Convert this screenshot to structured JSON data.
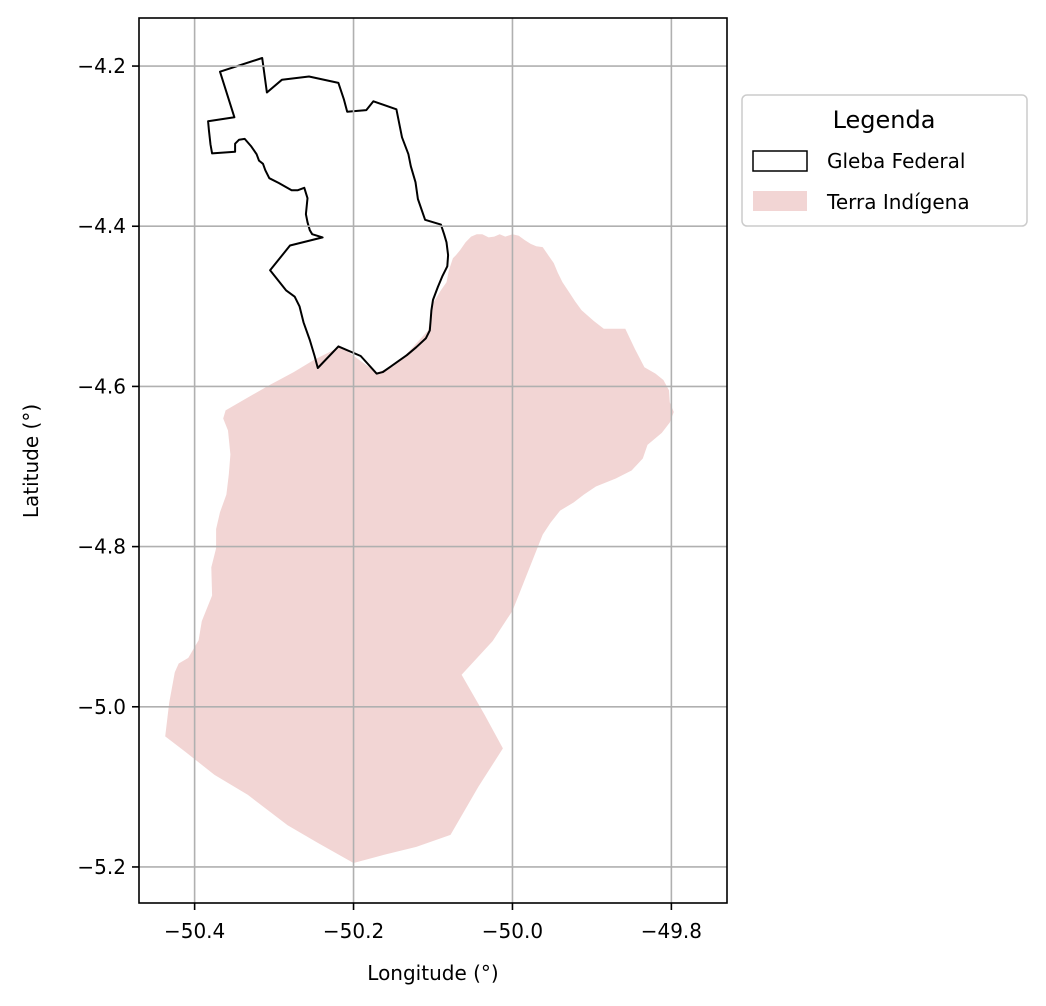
{
  "chart_data": {
    "type": "map",
    "xlabel": "Longitude (°)",
    "ylabel": "Latitude (°)",
    "xlim": [
      -50.47,
      -49.73
    ],
    "ylim": [
      -5.245,
      -4.14
    ],
    "x_ticks": [
      -50.4,
      -50.2,
      -50.0,
      -49.8
    ],
    "x_tick_labels": [
      "−50.4",
      "−50.2",
      "−50.0",
      "−49.8"
    ],
    "y_ticks": [
      -4.2,
      -4.4,
      -4.6,
      -4.8,
      -5.0,
      -5.2
    ],
    "y_tick_labels": [
      "−4.2",
      "−4.4",
      "−4.6",
      "−4.8",
      "−5.0",
      "−5.2"
    ],
    "grid": true,
    "legend": {
      "title": "Legenda",
      "placement": "outside upper right",
      "entries": [
        {
          "label": "Gleba Federal",
          "style": "outline",
          "color": "#000000"
        },
        {
          "label": "Terra Indígena",
          "style": "fill",
          "color": "#f2d5d4"
        }
      ]
    },
    "layers": [
      {
        "name": "Terra Indígena",
        "style": "fill",
        "color": "#f2d5d4",
        "coordinates": [
          [
            -50.216,
            -4.55
          ],
          [
            -50.19,
            -4.569
          ],
          [
            -50.171,
            -4.583
          ],
          [
            -50.15,
            -4.575
          ],
          [
            -50.13,
            -4.556
          ],
          [
            -50.106,
            -4.53
          ],
          [
            -50.1,
            -4.496
          ],
          [
            -50.09,
            -4.48
          ],
          [
            -50.083,
            -4.47
          ],
          [
            -50.08,
            -4.455
          ],
          [
            -50.075,
            -4.44
          ],
          [
            -50.071,
            -4.436
          ],
          [
            -50.066,
            -4.43
          ],
          [
            -50.059,
            -4.42
          ],
          [
            -50.052,
            -4.413
          ],
          [
            -50.045,
            -4.41
          ],
          [
            -50.038,
            -4.41
          ],
          [
            -50.03,
            -4.414
          ],
          [
            -50.023,
            -4.413
          ],
          [
            -50.016,
            -4.41
          ],
          [
            -50.009,
            -4.413
          ],
          [
            -50.0,
            -4.41
          ],
          [
            -49.992,
            -4.412
          ],
          [
            -49.985,
            -4.417
          ],
          [
            -49.977,
            -4.422
          ],
          [
            -49.97,
            -4.425
          ],
          [
            -49.962,
            -4.426
          ],
          [
            -49.955,
            -4.436
          ],
          [
            -49.948,
            -4.446
          ],
          [
            -49.943,
            -4.458
          ],
          [
            -49.937,
            -4.47
          ],
          [
            -49.929,
            -4.482
          ],
          [
            -49.921,
            -4.494
          ],
          [
            -49.913,
            -4.505
          ],
          [
            -49.898,
            -4.518
          ],
          [
            -49.885,
            -4.528
          ],
          [
            -49.858,
            -4.528
          ],
          [
            -49.846,
            -4.553
          ],
          [
            -49.834,
            -4.576
          ],
          [
            -49.82,
            -4.584
          ],
          [
            -49.81,
            -4.592
          ],
          [
            -49.803,
            -4.605
          ],
          [
            -49.802,
            -4.62
          ],
          [
            -49.797,
            -4.632
          ],
          [
            -49.802,
            -4.645
          ],
          [
            -49.812,
            -4.658
          ],
          [
            -49.83,
            -4.673
          ],
          [
            -49.836,
            -4.69
          ],
          [
            -49.85,
            -4.705
          ],
          [
            -49.87,
            -4.715
          ],
          [
            -49.895,
            -4.725
          ],
          [
            -49.91,
            -4.735
          ],
          [
            -49.923,
            -4.745
          ],
          [
            -49.94,
            -4.755
          ],
          [
            -49.952,
            -4.77
          ],
          [
            -49.962,
            -4.785
          ],
          [
            -49.98,
            -4.83
          ],
          [
            -50.0,
            -4.88
          ],
          [
            -50.025,
            -4.918
          ],
          [
            -50.064,
            -4.96
          ],
          [
            -50.035,
            -5.01
          ],
          [
            -50.012,
            -5.052
          ],
          [
            -50.043,
            -5.1
          ],
          [
            -50.078,
            -5.16
          ],
          [
            -50.121,
            -5.175
          ],
          [
            -50.162,
            -5.185
          ],
          [
            -50.2,
            -5.195
          ],
          [
            -50.245,
            -5.17
          ],
          [
            -50.283,
            -5.148
          ],
          [
            -50.333,
            -5.11
          ],
          [
            -50.375,
            -5.085
          ],
          [
            -50.412,
            -5.056
          ],
          [
            -50.437,
            -5.037
          ],
          [
            -50.432,
            -4.995
          ],
          [
            -50.425,
            -4.957
          ],
          [
            -50.42,
            -4.946
          ],
          [
            -50.408,
            -4.939
          ],
          [
            -50.395,
            -4.917
          ],
          [
            -50.391,
            -4.893
          ],
          [
            -50.378,
            -4.861
          ],
          [
            -50.379,
            -4.826
          ],
          [
            -50.373,
            -4.802
          ],
          [
            -50.373,
            -4.778
          ],
          [
            -50.368,
            -4.757
          ],
          [
            -50.36,
            -4.735
          ],
          [
            -50.357,
            -4.71
          ],
          [
            -50.355,
            -4.685
          ],
          [
            -50.358,
            -4.655
          ],
          [
            -50.364,
            -4.64
          ],
          [
            -50.361,
            -4.63
          ],
          [
            -50.335,
            -4.615
          ],
          [
            -50.305,
            -4.598
          ],
          [
            -50.275,
            -4.582
          ],
          [
            -50.25,
            -4.567
          ]
        ]
      },
      {
        "name": "Gleba Federal",
        "style": "outline",
        "color": "#000000",
        "coordinates": [
          [
            -50.315,
            -4.19
          ],
          [
            -50.368,
            -4.207
          ],
          [
            -50.35,
            -4.264
          ],
          [
            -50.383,
            -4.269
          ],
          [
            -50.382,
            -4.28
          ],
          [
            -50.38,
            -4.298
          ],
          [
            -50.378,
            -4.309
          ],
          [
            -50.349,
            -4.307
          ],
          [
            -50.349,
            -4.297
          ],
          [
            -50.344,
            -4.292
          ],
          [
            -50.337,
            -4.291
          ],
          [
            -50.329,
            -4.3
          ],
          [
            -50.322,
            -4.31
          ],
          [
            -50.319,
            -4.318
          ],
          [
            -50.314,
            -4.322
          ],
          [
            -50.311,
            -4.33
          ],
          [
            -50.306,
            -4.34
          ],
          [
            -50.294,
            -4.346
          ],
          [
            -50.278,
            -4.355
          ],
          [
            -50.27,
            -4.355
          ],
          [
            -50.262,
            -4.352
          ],
          [
            -50.258,
            -4.365
          ],
          [
            -50.26,
            -4.385
          ],
          [
            -50.258,
            -4.395
          ],
          [
            -50.255,
            -4.405
          ],
          [
            -50.252,
            -4.41
          ],
          [
            -50.239,
            -4.414
          ],
          [
            -50.28,
            -4.424
          ],
          [
            -50.305,
            -4.455
          ],
          [
            -50.285,
            -4.48
          ],
          [
            -50.274,
            -4.488
          ],
          [
            -50.268,
            -4.5
          ],
          [
            -50.263,
            -4.52
          ],
          [
            -50.255,
            -4.542
          ],
          [
            -50.249,
            -4.562
          ],
          [
            -50.245,
            -4.577
          ],
          [
            -50.219,
            -4.55
          ],
          [
            -50.191,
            -4.562
          ],
          [
            -50.171,
            -4.584
          ],
          [
            -50.163,
            -4.582
          ],
          [
            -50.153,
            -4.575
          ],
          [
            -50.143,
            -4.568
          ],
          [
            -50.133,
            -4.561
          ],
          [
            -50.121,
            -4.551
          ],
          [
            -50.109,
            -4.54
          ],
          [
            -50.104,
            -4.53
          ],
          [
            -50.103,
            -4.518
          ],
          [
            -50.102,
            -4.505
          ],
          [
            -50.1,
            -4.492
          ],
          [
            -50.094,
            -4.476
          ],
          [
            -50.088,
            -4.462
          ],
          [
            -50.082,
            -4.45
          ],
          [
            -50.081,
            -4.436
          ],
          [
            -50.083,
            -4.42
          ],
          [
            -50.086,
            -4.41
          ],
          [
            -50.09,
            -4.398
          ],
          [
            -50.11,
            -4.392
          ],
          [
            -50.119,
            -4.366
          ],
          [
            -50.122,
            -4.345
          ],
          [
            -50.128,
            -4.325
          ],
          [
            -50.131,
            -4.31
          ],
          [
            -50.139,
            -4.289
          ],
          [
            -50.146,
            -4.254
          ],
          [
            -50.175,
            -4.244
          ],
          [
            -50.184,
            -4.255
          ],
          [
            -50.208,
            -4.257
          ],
          [
            -50.212,
            -4.242
          ],
          [
            -50.219,
            -4.221
          ],
          [
            -50.256,
            -4.213
          ],
          [
            -50.29,
            -4.217
          ],
          [
            -50.309,
            -4.233
          ]
        ]
      }
    ]
  }
}
